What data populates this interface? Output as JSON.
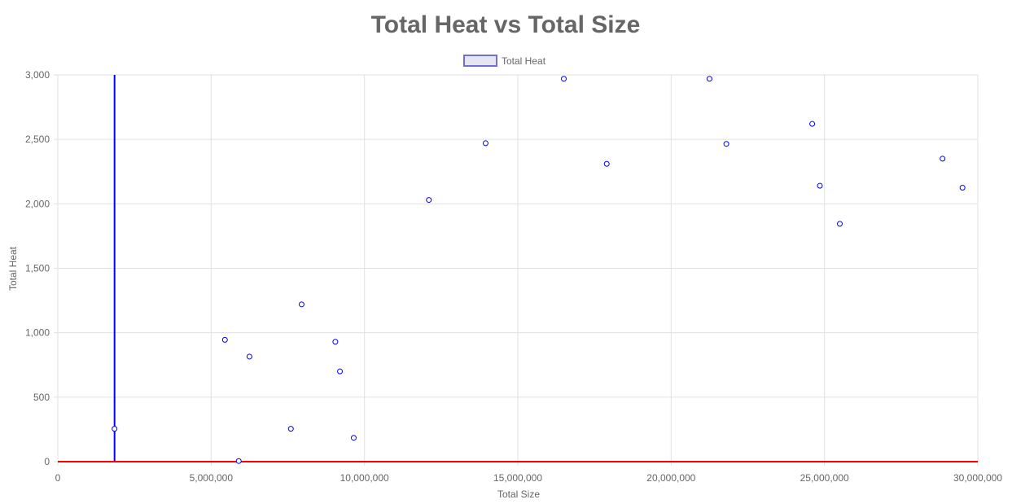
{
  "chart_data": {
    "type": "scatter",
    "title": "Total Heat vs Total Size",
    "xlabel": "Total Size",
    "ylabel": "Total Heat",
    "xlim": [
      0,
      30000000
    ],
    "ylim": [
      0,
      3000
    ],
    "x_ticks": [
      0,
      5000000,
      10000000,
      15000000,
      20000000,
      25000000,
      30000000
    ],
    "x_tick_labels": [
      "0",
      "5,000,000",
      "10,000,000",
      "15,000,000",
      "20,000,000",
      "25,000,000",
      "30,000,000"
    ],
    "y_ticks": [
      0,
      500,
      1000,
      1500,
      2000,
      2500,
      3000
    ],
    "y_tick_labels": [
      "0",
      "500",
      "1,000",
      "1,500",
      "2,000",
      "2,500",
      "3,000"
    ],
    "grid": true,
    "legend": {
      "position": "top",
      "entries": [
        "Total Heat"
      ]
    },
    "colors": {
      "point": "#0000ff",
      "legend_fill": "#e6e6f2",
      "legend_border": "#6f6fd6",
      "vertical_line": "#0000ff",
      "horizontal_line": "#ff0000",
      "grid": "#e1e1e1"
    },
    "reference_lines": [
      {
        "orientation": "vertical",
        "x": 1850000
      },
      {
        "orientation": "horizontal",
        "y": 0
      }
    ],
    "series": [
      {
        "name": "Total Heat",
        "points": [
          {
            "x": 1850000,
            "y": 255
          },
          {
            "x": 5450000,
            "y": 945
          },
          {
            "x": 5900000,
            "y": 5
          },
          {
            "x": 6250000,
            "y": 815
          },
          {
            "x": 7600000,
            "y": 255
          },
          {
            "x": 7950000,
            "y": 1220
          },
          {
            "x": 9050000,
            "y": 930
          },
          {
            "x": 9200000,
            "y": 700
          },
          {
            "x": 9650000,
            "y": 185
          },
          {
            "x": 12100000,
            "y": 2030
          },
          {
            "x": 13950000,
            "y": 2470
          },
          {
            "x": 16500000,
            "y": 2970
          },
          {
            "x": 17900000,
            "y": 2310
          },
          {
            "x": 21250000,
            "y": 2970
          },
          {
            "x": 21800000,
            "y": 2465
          },
          {
            "x": 24600000,
            "y": 2620
          },
          {
            "x": 24850000,
            "y": 2140
          },
          {
            "x": 25500000,
            "y": 1845
          },
          {
            "x": 28850000,
            "y": 2350
          },
          {
            "x": 29500000,
            "y": 2125
          }
        ]
      }
    ]
  }
}
